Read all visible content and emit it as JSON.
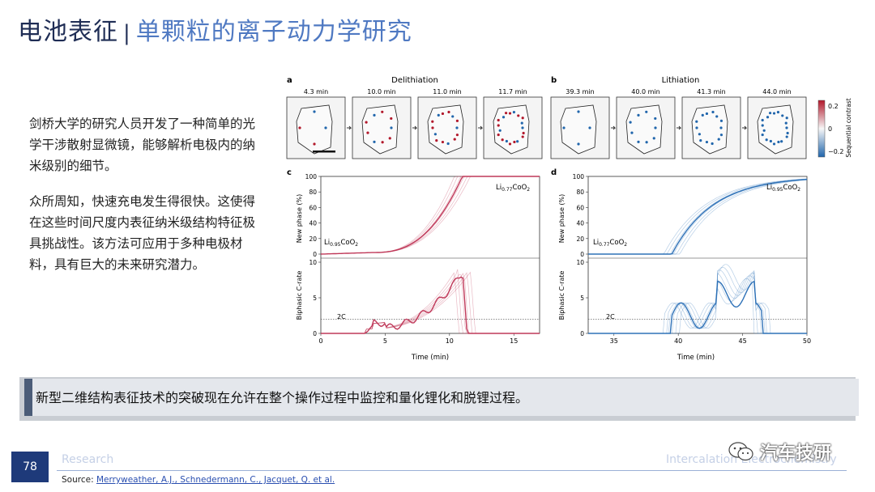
{
  "title": {
    "main": "电池表征",
    "separator": "|",
    "sub": "单颗粒的离子动力学研究"
  },
  "body": {
    "para1": "剑桥大学的研究人员开发了一种简单的光学干涉散射显微镜，能够解析电极内的纳米级别的细节。",
    "para2": "众所周知，快速充电发生得很快。这使得在这些时间尺度内表征纳米级结构特征极具挑战性。该方法可应用于多种电极材料，具有巨大的未来研究潜力。"
  },
  "figure": {
    "panel_a": {
      "letter": "a",
      "title": "Delithiation",
      "times": [
        "4.3 min",
        "10.0 min",
        "11.0 min",
        "11.7 min"
      ]
    },
    "panel_b": {
      "letter": "b",
      "title": "Lithiation",
      "times": [
        "39.3 min",
        "40.0 min",
        "41.3 min",
        "44.0 min"
      ]
    },
    "colorbar": {
      "ticks": [
        "0.2",
        "0",
        "−0.2"
      ],
      "label": "Sequential contrast",
      "colors": {
        "high": "#b2182b",
        "mid": "#f7f7f7",
        "low": "#2166ac"
      }
    },
    "panel_c": {
      "letter": "c",
      "top_label_base": "Li",
      "top_label_sub": "0.77",
      "top_label_rest": "CoO",
      "top_label_sub2": "2",
      "bottom_label_base": "Li",
      "bottom_label_sub": "0.95",
      "bottom_label_rest": "CoO",
      "bottom_label_sub2": "2"
    },
    "panel_d": {
      "letter": "d",
      "top_label_base": "Li",
      "top_label_sub": "0.95",
      "top_label_rest": "CoO",
      "top_label_sub2": "2",
      "bottom_label_base": "Li",
      "bottom_label_sub": "0.77",
      "bottom_label_rest": "CoO",
      "bottom_label_sub2": "2"
    },
    "ylabel_top": "New phase (%)",
    "ylabel_bottom": "Biphasic C-rate",
    "xlabel": "Time (min)",
    "rate_label": "2C",
    "c_xticks": [
      "0",
      "5",
      "10",
      "15"
    ],
    "d_xticks": [
      "35",
      "40",
      "45",
      "50"
    ],
    "top_yticks": [
      "0",
      "20",
      "40",
      "60",
      "80",
      "100"
    ],
    "bottom_yticks": [
      "0",
      "5",
      "10"
    ],
    "colors": {
      "delithiation": "#c0395a",
      "lithiation": "#2f72b8"
    }
  },
  "banner": {
    "text": "新型二维结构表征技术的突破现在允许在整个操作过程中监控和量化锂化和脱锂过程。"
  },
  "footer": {
    "page_number": "78",
    "section": "Research",
    "topic": "Intercalation Electrochemistry",
    "source_prefix": "Source: ",
    "source_link": "Merryweather, A.J., Schnedermann, C., Jacquet, Q. et al.",
    "watermark": "汽车技研"
  }
}
